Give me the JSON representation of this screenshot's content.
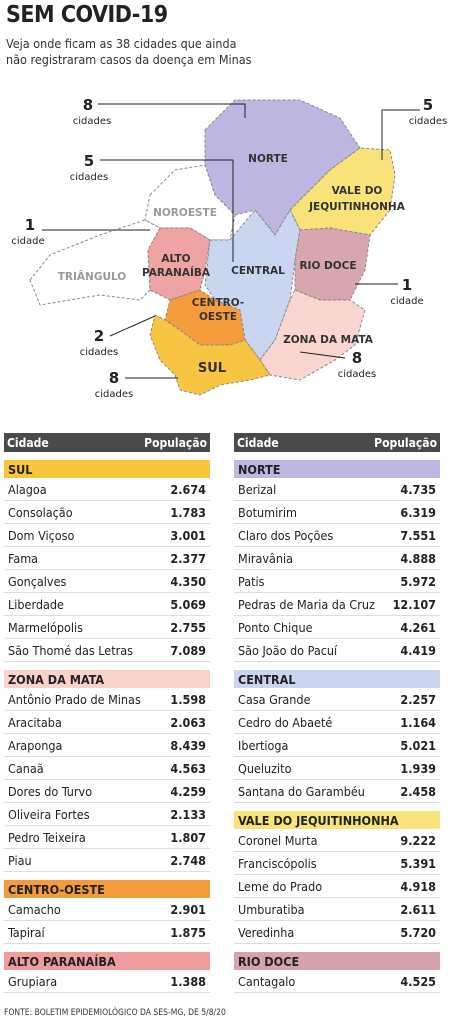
{
  "header": {
    "title": "SEM COVID-19",
    "subtitle": [
      "Veja onde ficam as 38 cidades que ainda",
      "não registraram casos da doença em Minas"
    ]
  },
  "map": {
    "regions": [
      {
        "label": [
          "NORTE"
        ],
        "color": "#bcb6e0"
      },
      {
        "label": [
          "NOROESTE"
        ],
        "color": "#ffffff"
      },
      {
        "label": [
          "VALE DO",
          "JEQUITINHONHA"
        ],
        "color": "#f9e27a"
      },
      {
        "label": [
          "TRIÂNGULO"
        ],
        "color": "#ffffff"
      },
      {
        "label": [
          "ALTO",
          "PARANAÍBA"
        ],
        "color": "#f0a3a3"
      },
      {
        "label": [
          "CENTRAL"
        ],
        "color": "#cad6f0"
      },
      {
        "label": [
          "RIO DOCE"
        ],
        "color": "#d8a6ae"
      },
      {
        "label": [
          "CENTRO-",
          "OESTE"
        ],
        "color": "#f59d3d"
      },
      {
        "label": [
          "ZONA DA MATA"
        ],
        "color": "#f9d6d0"
      },
      {
        "label": [
          "SUL"
        ],
        "color": "#f8c542"
      }
    ],
    "callouts": [
      {
        "count": "8",
        "unit": "cidades"
      },
      {
        "count": "5",
        "unit": "cidades"
      },
      {
        "count": "5",
        "unit": "cidades"
      },
      {
        "count": "1",
        "unit": "cidade"
      },
      {
        "count": "1",
        "unit": "cidade"
      },
      {
        "count": "2",
        "unit": "cidades"
      },
      {
        "count": "8",
        "unit": "cidades"
      },
      {
        "count": "8",
        "unit": "cidades"
      }
    ]
  },
  "tables": [
    {
      "columns": [
        "Cidade",
        "População"
      ],
      "groups": [
        {
          "name": "SUL",
          "color": "#f8c53c",
          "rows": [
            [
              "Alagoa",
              "2.674"
            ],
            [
              "Consolação",
              "1.783"
            ],
            [
              "Dom Viçoso",
              "3.001"
            ],
            [
              "Fama",
              "2.377"
            ],
            [
              "Gonçalves",
              "4.350"
            ],
            [
              "Liberdade",
              "5.069"
            ],
            [
              "Marmelópolis",
              "2.755"
            ],
            [
              "São Thomé das Letras",
              "7.089"
            ]
          ]
        },
        {
          "name": "ZONA DA MATA",
          "color": "#f9d2cc",
          "rows": [
            [
              "Antônio Prado de Minas",
              "1.598"
            ],
            [
              "Aracitaba",
              "2.063"
            ],
            [
              "Araponga",
              "8.439"
            ],
            [
              "Canaã",
              "4.563"
            ],
            [
              "Dores do Turvo",
              "4.259"
            ],
            [
              "Oliveira Fortes",
              "2.133"
            ],
            [
              "Pedro Teixeira",
              "1.807"
            ],
            [
              "Piau",
              "2.748"
            ]
          ]
        },
        {
          "name": "CENTRO-OESTE",
          "color": "#f39b3d",
          "rows": [
            [
              "Camacho",
              "2.901"
            ],
            [
              "Tapiraí",
              "1.875"
            ]
          ]
        },
        {
          "name": "ALTO PARANAÍBA",
          "color": "#ee9c9c",
          "rows": [
            [
              "Grupiara",
              "1.388"
            ]
          ]
        }
      ]
    },
    {
      "columns": [
        "Cidade",
        "População"
      ],
      "groups": [
        {
          "name": "NORTE",
          "color": "#bdb7e1",
          "rows": [
            [
              "Berizal",
              "4.735"
            ],
            [
              "Botumirim",
              "6.319"
            ],
            [
              "Claro dos Poções",
              "7.551"
            ],
            [
              "Miravânia",
              "4.888"
            ],
            [
              "Patis",
              "5.972"
            ],
            [
              "Pedras de Maria da Cruz",
              "12.107"
            ],
            [
              "Ponto Chique",
              "4.261"
            ],
            [
              "São João do Pacuí",
              "4.419"
            ]
          ]
        },
        {
          "name": "CENTRAL",
          "color": "#cad6f0",
          "rows": [
            [
              "Casa Grande",
              "2.257"
            ],
            [
              "Cedro do Abaeté",
              "1.164"
            ],
            [
              "Ibertioga",
              "5.021"
            ],
            [
              "Queluzito",
              "1.939"
            ],
            [
              "Santana do Garambéu",
              "2.458"
            ]
          ]
        },
        {
          "name": "VALE DO JEQUITINHONHA",
          "color": "#f9e37c",
          "rows": [
            [
              "Coronel Murta",
              "9.222"
            ],
            [
              "Franciscópolis",
              "5.391"
            ],
            [
              "Leme do Prado",
              "4.918"
            ],
            [
              "Umburatiba",
              "2.611"
            ],
            [
              "Veredinha",
              "5.720"
            ]
          ]
        },
        {
          "name": "RIO DOCE",
          "color": "#d6a3ac",
          "rows": [
            [
              "Cantagalo",
              "4.525"
            ]
          ]
        }
      ]
    }
  ],
  "footer": "FONTE: BOLETIM EPIDEMIOLÓGICO DA SES-MG, DE 5/8/20"
}
